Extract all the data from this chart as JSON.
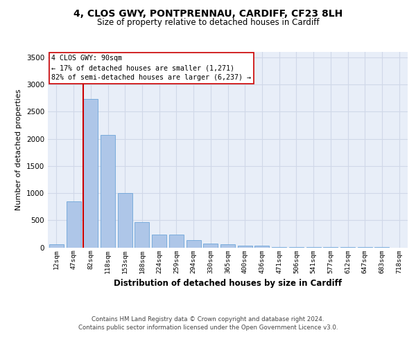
{
  "title1": "4, CLOS GWY, PONTPRENNAU, CARDIFF, CF23 8LH",
  "title2": "Size of property relative to detached houses in Cardiff",
  "xlabel": "Distribution of detached houses by size in Cardiff",
  "ylabel": "Number of detached properties",
  "bar_labels": [
    "12sqm",
    "47sqm",
    "82sqm",
    "118sqm",
    "153sqm",
    "188sqm",
    "224sqm",
    "259sqm",
    "294sqm",
    "330sqm",
    "365sqm",
    "400sqm",
    "436sqm",
    "471sqm",
    "506sqm",
    "541sqm",
    "577sqm",
    "612sqm",
    "647sqm",
    "683sqm",
    "718sqm"
  ],
  "bar_values": [
    60,
    850,
    2730,
    2070,
    1000,
    460,
    230,
    230,
    140,
    70,
    55,
    35,
    35,
    10,
    10,
    5,
    2,
    2,
    1,
    1,
    0
  ],
  "bar_color": "#aec6e8",
  "bar_edge_color": "#5b9bd5",
  "ylim": [
    0,
    3600
  ],
  "yticks": [
    0,
    500,
    1000,
    1500,
    2000,
    2500,
    3000,
    3500
  ],
  "vline_color": "#cc0000",
  "annotation_text": "4 CLOS GWY: 90sqm\n← 17% of detached houses are smaller (1,271)\n82% of semi-detached houses are larger (6,237) →",
  "annotation_box_color": "#ffffff",
  "annotation_box_edge": "#cc0000",
  "grid_color": "#d0d8e8",
  "background_color": "#e8eef8",
  "footer1": "Contains HM Land Registry data © Crown copyright and database right 2024.",
  "footer2": "Contains public sector information licensed under the Open Government Licence v3.0."
}
